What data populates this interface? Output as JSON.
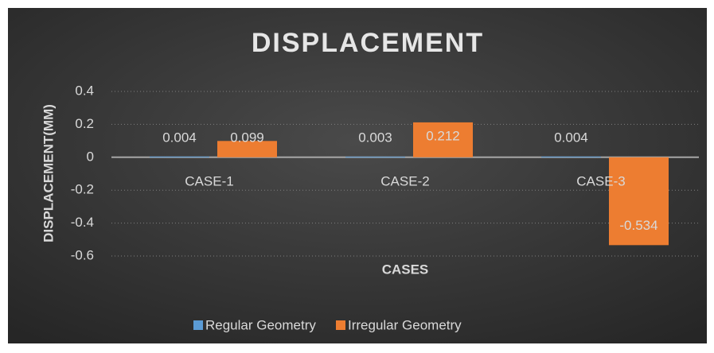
{
  "chart_data": {
    "type": "bar",
    "title": "DISPLACEMENT",
    "x_label": "CASES",
    "y_label": "DISPLACEMENT(MM)",
    "categories": [
      "CASE-1",
      "CASE-2",
      "CASE-3"
    ],
    "series": [
      {
        "name": "Regular Geometry",
        "color": "#5b9bd5",
        "values": [
          0.004,
          0.003,
          0.004
        ]
      },
      {
        "name": "Irregular Geometry",
        "color": "#ed7d31",
        "values": [
          0.099,
          0.212,
          -0.534
        ]
      }
    ],
    "ylim": [
      -0.6,
      0.4
    ],
    "yticks": [
      -0.6,
      -0.4,
      -0.2,
      0,
      0.2,
      0.4
    ],
    "grid": true,
    "legend": "bottom"
  }
}
